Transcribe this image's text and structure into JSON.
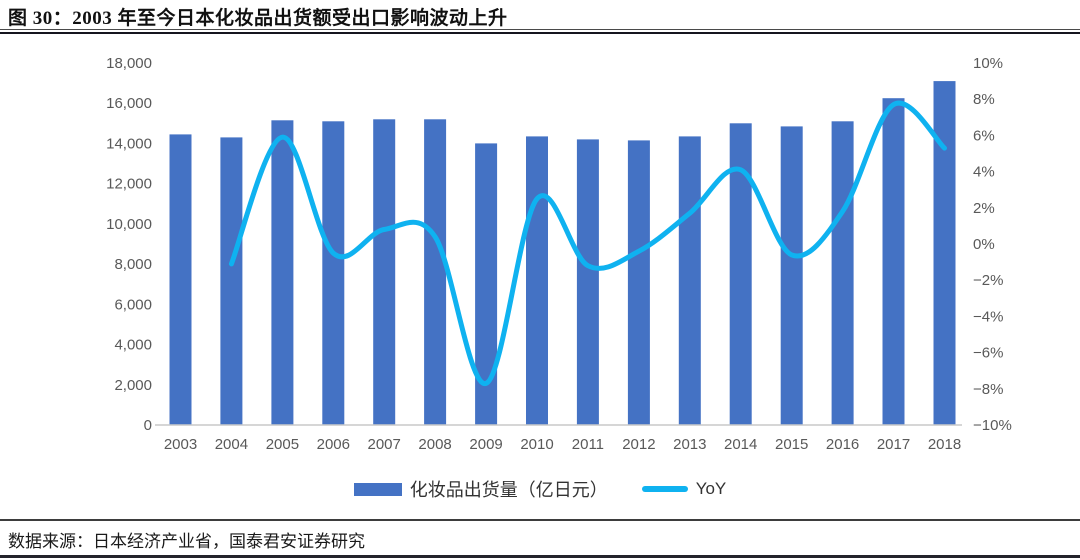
{
  "header": {
    "title": "图 30：2003 年至今日本化妆品出货额受出口影响波动上升"
  },
  "chart_data": {
    "type": "combo",
    "categories": [
      "2003",
      "2004",
      "2005",
      "2006",
      "2007",
      "2008",
      "2009",
      "2010",
      "2011",
      "2012",
      "2013",
      "2014",
      "2015",
      "2016",
      "2017",
      "2018"
    ],
    "series": [
      {
        "name": "化妆品出货量（亿日元）",
        "type": "bar",
        "axis": "left",
        "color": "#4472C4",
        "values": [
          14450,
          14300,
          15150,
          15100,
          15200,
          15200,
          14000,
          14350,
          14200,
          14150,
          14350,
          15000,
          14850,
          15100,
          16250,
          17100
        ]
      },
      {
        "name": "YoY",
        "type": "line",
        "axis": "right",
        "unit": "%",
        "color": "#0FB2F0",
        "values": [
          null,
          -1.1,
          5.9,
          -0.5,
          0.8,
          0.4,
          -7.7,
          2.5,
          -1.2,
          -0.4,
          1.7,
          4.1,
          -0.6,
          1.8,
          7.7,
          5.3
        ]
      }
    ],
    "left_axis": {
      "min": 0,
      "max": 18000,
      "step": 2000,
      "tick_labels": [
        "0",
        "2,000",
        "4,000",
        "6,000",
        "8,000",
        "10,000",
        "12,000",
        "14,000",
        "16,000",
        "18,000"
      ]
    },
    "right_axis": {
      "min": -10,
      "max": 10,
      "step": 2,
      "tick_labels": [
        "−10%",
        "−8%",
        "−6%",
        "−4%",
        "−2%",
        "0%",
        "2%",
        "4%",
        "6%",
        "8%",
        "10%"
      ]
    },
    "grid": false,
    "legend_position": "bottom",
    "axis_text_color": "#595959",
    "baseline_color": "#C9C9C9"
  },
  "footer": {
    "source": "数据来源：日本经济产业省，国泰君安证券研究"
  }
}
